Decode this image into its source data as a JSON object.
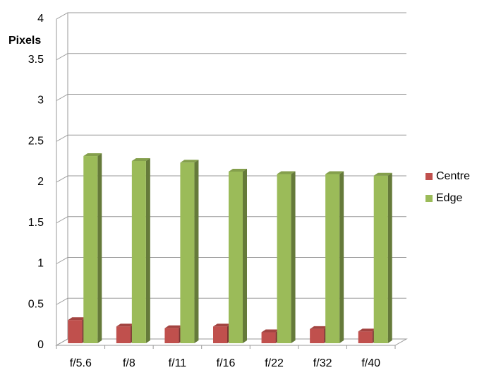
{
  "chart_data": {
    "type": "bar3d",
    "y_label": "Pixels",
    "categories": [
      "f/5.6",
      "f/8",
      "f/11",
      "f/16",
      "f/22",
      "f/32",
      "f/40"
    ],
    "series": [
      {
        "name": "Centre",
        "color": "#c0504d",
        "values": [
          0.31,
          0.23,
          0.21,
          0.23,
          0.16,
          0.2,
          0.17
        ]
      },
      {
        "name": "Edge",
        "color": "#9bbb59",
        "values": [
          2.32,
          2.26,
          2.24,
          2.13,
          2.1,
          2.1,
          2.08
        ]
      }
    ],
    "ylim": [
      0,
      4
    ],
    "yticks": [
      0,
      0.5,
      1,
      1.5,
      2,
      2.5,
      3,
      3.5,
      4
    ],
    "grid": true,
    "legend": "right"
  }
}
